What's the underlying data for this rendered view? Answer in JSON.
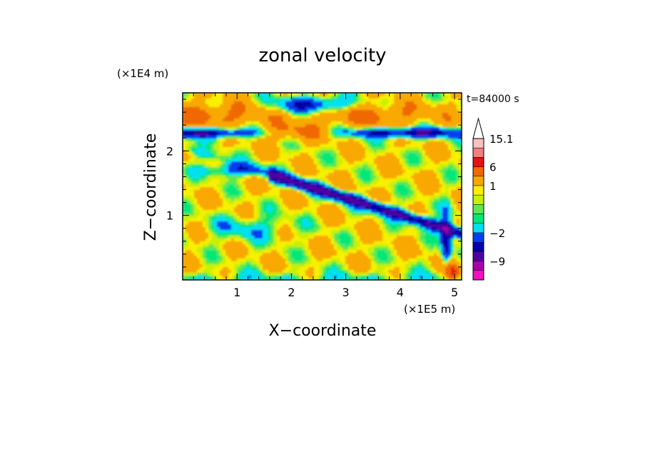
{
  "chart_data": {
    "type": "heatmap",
    "title": "zonal velocity",
    "xlabel": "X−coordinate",
    "ylabel": "Z−coordinate",
    "x_unit": "(×1E5 m)",
    "y_unit": "(×1E4 m)",
    "time_label": "t=84000 s",
    "xlim": [
      0,
      5.13
    ],
    "ylim": [
      0,
      2.9
    ],
    "x_ticks": [
      {
        "value": 1,
        "label": "1"
      },
      {
        "value": 2,
        "label": "2"
      },
      {
        "value": 3,
        "label": "3"
      },
      {
        "value": 4,
        "label": "4"
      },
      {
        "value": 5,
        "label": "5"
      }
    ],
    "y_ticks": [
      {
        "value": 1,
        "label": "1"
      },
      {
        "value": 2,
        "label": "2"
      }
    ],
    "colorbar": {
      "levels": [
        15.1,
        12,
        9,
        6,
        3,
        1,
        0.5,
        0,
        -0.5,
        -1,
        -2,
        -4,
        -6,
        -9,
        -12,
        -15
      ],
      "colors": [
        "#f8c0c0",
        "#f08080",
        "#e81010",
        "#f06800",
        "#f8a800",
        "#f8f000",
        "#c8f000",
        "#60e850",
        "#00e878",
        "#00e0f0",
        "#0040f0",
        "#0000a8",
        "#5000a0",
        "#a800a8",
        "#f010c0"
      ],
      "labels": [
        {
          "value": 15.1,
          "label": "15.1"
        },
        {
          "value": 6,
          "label": "6"
        },
        {
          "value": 1,
          "label": "1"
        },
        {
          "value": -2,
          "label": "−2"
        },
        {
          "value": -9,
          "label": "−9"
        }
      ]
    },
    "regions": [
      {
        "band": [
          2.5,
          2.9
        ],
        "value": 3,
        "note": "orange/yellow upper layer"
      },
      {
        "band": [
          1.9,
          2.5
        ],
        "value": 1,
        "note": "yellow with blue streaks"
      },
      {
        "band": [
          1.0,
          1.9
        ],
        "value": -2,
        "note": "blue diagonal jet descending eastward"
      },
      {
        "band": [
          0.0,
          1.0
        ],
        "value": 1,
        "note": "green/yellow lower layer"
      }
    ]
  }
}
